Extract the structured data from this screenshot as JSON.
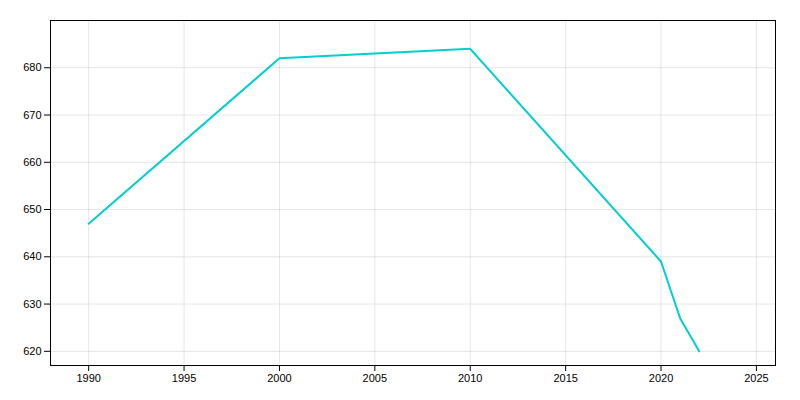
{
  "chart_data": {
    "type": "line",
    "x": [
      1990,
      2000,
      2010,
      2020,
      2021,
      2022
    ],
    "values": [
      647,
      682,
      684,
      639,
      627,
      620
    ],
    "color": "#00CED1",
    "xlim": [
      1988,
      2026
    ],
    "ylim": [
      617,
      690
    ],
    "xticks": [
      1990,
      1995,
      2000,
      2005,
      2010,
      2015,
      2020,
      2025
    ],
    "yticks": [
      620,
      630,
      640,
      650,
      660,
      670,
      680
    ],
    "grid": true
  }
}
